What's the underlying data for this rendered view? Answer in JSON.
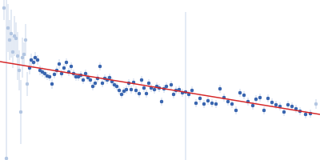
{
  "chart_data": {
    "type": "scatter",
    "xlim": [
      0,
      400
    ],
    "ylim": [
      0,
      200
    ],
    "tick_labels": false,
    "grid": false,
    "series": [
      {
        "color": "#b3c6e2",
        "marker": "circle",
        "x": [
          5,
          8,
          10,
          12,
          14,
          16,
          18,
          20,
          22,
          24,
          26,
          28,
          30,
          32,
          34,
          395
        ],
        "values": [
          190,
          2,
          165,
          150,
          158,
          135,
          155,
          152,
          130,
          112,
          60,
          128,
          132,
          150,
          95,
          70
        ],
        "errors": [
          15,
          198,
          30,
          25,
          30,
          20,
          25,
          20,
          30,
          25,
          40,
          25,
          15,
          20,
          15,
          6
        ]
      },
      {
        "color": "#3a66b0",
        "marker": "circle",
        "x": [
          37,
          39,
          42,
          44,
          47,
          50,
          53,
          56,
          59,
          62,
          65,
          68,
          71,
          74,
          77,
          80,
          83,
          86,
          89,
          92,
          95,
          98,
          101,
          104,
          107,
          110,
          113,
          116,
          119,
          122,
          125,
          128,
          131,
          134,
          137,
          140,
          143,
          146,
          149,
          152,
          155,
          158,
          161,
          164,
          167,
          170,
          174,
          177,
          180,
          183,
          186,
          189,
          193,
          196,
          199,
          202,
          205,
          208,
          214,
          217,
          220,
          224,
          228,
          232,
          236,
          240,
          245,
          250,
          255,
          260,
          265,
          270,
          275,
          280,
          285,
          290,
          295,
          300,
          305,
          310,
          316,
          320,
          325,
          330,
          335,
          340,
          345,
          350,
          355,
          360,
          365,
          370,
          375,
          382,
          388
        ],
        "values": [
          115,
          125,
          122,
          128,
          125,
          112,
          110,
          108,
          105,
          104,
          95,
          107,
          112,
          120,
          108,
          115,
          122,
          110,
          117,
          108,
          104,
          104,
          106,
          100,
          108,
          103,
          100,
          92,
          96,
          102,
          117,
          96,
          102,
          100,
          103,
          98,
          94,
          92,
          87,
          82,
          86,
          88,
          96,
          88,
          97,
          87,
          83,
          100,
          90,
          83,
          96,
          90,
          88,
          92,
          90,
          73,
          89,
          92,
          94,
          82,
          87,
          88,
          84,
          85,
          82,
          87,
          71,
          77,
          70,
          74,
          71,
          70,
          89,
          78,
          73,
          70,
          62,
          84,
          81,
          73,
          68,
          76,
          78,
          62,
          77,
          72,
          69,
          67,
          60,
          69,
          67,
          64,
          61,
          57,
          58
        ],
        "errors": [
          8,
          8,
          7,
          7,
          6,
          6,
          6,
          6,
          5,
          5,
          6,
          5,
          5,
          6,
          5,
          5,
          5,
          5,
          5,
          5,
          5,
          5,
          5,
          5,
          5,
          5,
          5,
          5,
          5,
          5,
          5,
          5,
          5,
          5,
          5,
          5,
          5,
          5,
          5,
          5,
          5,
          5,
          5,
          5,
          5,
          5,
          5,
          5,
          5,
          5,
          5,
          5,
          5,
          5,
          5,
          5,
          5,
          5,
          5,
          5,
          5,
          5,
          5,
          100,
          5,
          5,
          5,
          5,
          5,
          5,
          5,
          5,
          5,
          5,
          5,
          5,
          5,
          5,
          5,
          5,
          5,
          5,
          5,
          5,
          5,
          5,
          5,
          5,
          5,
          5,
          5,
          5,
          5,
          5,
          5
        ]
      },
      {
        "type": "line",
        "color": "#d62728",
        "x": [
          0,
          400
        ],
        "values": [
          123,
          57
        ]
      }
    ]
  }
}
